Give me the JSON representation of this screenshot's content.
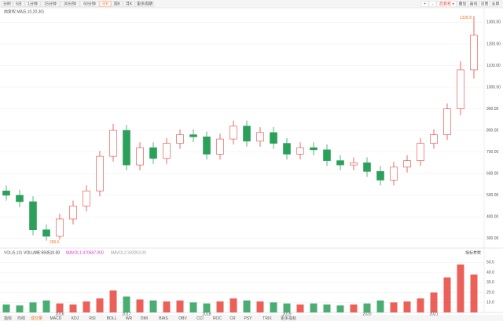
{
  "toolbar": {
    "tabs": [
      "分时",
      "5日",
      "1分钟",
      "15分钟",
      "30分钟",
      "60分钟",
      "日K",
      "周K",
      "月K",
      "更多周期"
    ],
    "active_tab": "日K",
    "right_buttons": [
      "+",
      "-",
      "后复权 ▾",
      "叠加",
      "画线",
      "设置",
      "全屏"
    ]
  },
  "legend": "前复权 MA(5,10,20,30)",
  "volume_legend": {
    "name": "VOL(5,10)",
    "items": [
      {
        "text": "VOLUME:593510.00",
        "color": "#333333"
      },
      {
        "text": "MAVOL1:470587.000",
        "color": "#d633c6"
      },
      {
        "text": "MAVOL2:392003.00",
        "color": "#999999"
      }
    ],
    "right": "指标参数"
  },
  "bottom_tabs": {
    "tabs": [
      "指标",
      "均线",
      "成交量",
      "MACD",
      "KDJ",
      "RSI",
      "BOLL",
      "WR",
      "DMI",
      "BIAS",
      "OBV",
      "CCI",
      "ROC",
      "CR",
      "PSY",
      "TRIX",
      "更多指标"
    ],
    "active_tab": "成交量"
  },
  "chart_data": [
    {
      "type": "candlestick",
      "up_color": "#e8453c",
      "down_color": "#2aa05a",
      "categories": [
        null,
        null,
        null,
        null,
        "2016",
        null,
        null,
        null,
        null,
        "2017",
        null,
        null,
        null,
        null,
        null,
        "2018",
        null,
        null,
        null,
        null,
        null,
        "2019",
        null,
        null,
        null,
        null,
        null,
        "2020",
        null,
        null,
        null,
        null,
        "2021",
        null,
        null,
        null
      ],
      "open": [
        520,
        500,
        470,
        340,
        310,
        390,
        450,
        520,
        680,
        800,
        640,
        720,
        670,
        740,
        780,
        770,
        690,
        760,
        820,
        750,
        790,
        740,
        690,
        720,
        710,
        660,
        640,
        650,
        610,
        570,
        630,
        660,
        740,
        780,
        900,
        1080
      ],
      "high": [
        545,
        525,
        495,
        365,
        415,
        475,
        545,
        705,
        830,
        825,
        745,
        745,
        765,
        805,
        805,
        795,
        785,
        845,
        845,
        815,
        815,
        765,
        745,
        745,
        735,
        685,
        675,
        675,
        635,
        655,
        685,
        765,
        805,
        925,
        1120,
        1328.8
      ],
      "low": [
        475,
        445,
        315,
        289.6,
        295,
        365,
        425,
        495,
        655,
        615,
        615,
        645,
        645,
        715,
        745,
        665,
        665,
        735,
        725,
        725,
        715,
        665,
        665,
        685,
        635,
        615,
        615,
        585,
        545,
        545,
        605,
        635,
        715,
        755,
        870,
        1040
      ],
      "close": [
        500,
        470,
        340,
        310,
        390,
        450,
        520,
        680,
        800,
        640,
        720,
        670,
        740,
        780,
        770,
        690,
        760,
        820,
        750,
        790,
        740,
        690,
        720,
        710,
        660,
        640,
        650,
        610,
        570,
        630,
        660,
        740,
        780,
        900,
        1080,
        1240
      ],
      "high_label": "1328.8",
      "low_label": "289.6",
      "ylim": [
        270,
        1345
      ],
      "yticks": [
        {
          "value": 300,
          "label": "300.00"
        },
        {
          "value": 400,
          "label": "400.00"
        },
        {
          "value": 500,
          "label": "500.00"
        },
        {
          "value": 600,
          "label": "600.00"
        },
        {
          "value": 700,
          "label": "700.00"
        },
        {
          "value": 800,
          "label": "800.00"
        },
        {
          "value": 900,
          "label": "900.00"
        },
        {
          "value": 1000,
          "label": "1000.00"
        },
        {
          "value": 1100,
          "label": "1100.00"
        },
        {
          "value": 1200,
          "label": "1200.00"
        },
        {
          "value": 1300,
          "label": "1300.00"
        }
      ],
      "grid": true
    },
    {
      "type": "bar",
      "values": [
        8,
        7,
        10,
        12,
        9,
        8,
        11,
        14,
        22,
        16,
        13,
        12,
        11,
        12,
        10,
        9,
        11,
        14,
        12,
        11,
        10,
        9,
        8,
        9,
        8,
        7,
        8,
        9,
        12,
        10,
        11,
        14,
        20,
        35,
        48,
        38
      ],
      "ylim": [
        0,
        55
      ],
      "yticks": [
        {
          "value": 10,
          "label": "10.0"
        },
        {
          "value": 20,
          "label": "20.0"
        },
        {
          "value": 30,
          "label": "30.0"
        },
        {
          "value": 40,
          "label": "40.0"
        },
        {
          "value": 50,
          "label": "50.0"
        }
      ],
      "grid": true
    }
  ]
}
